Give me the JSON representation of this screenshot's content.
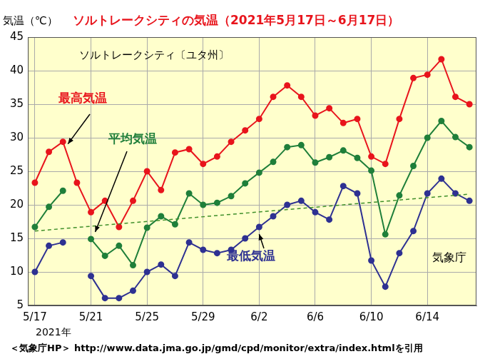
{
  "chart_data": {
    "type": "line",
    "title": "ソルトレークシティの気温（2021年5月17日～6月17日）",
    "subtitle": "ソルトレークシティ〔ユタ州〕",
    "y_label": "気温（℃）",
    "x_label": "2021年",
    "annotations": [
      "気象庁"
    ],
    "note": "＜気象庁HP＞ http://www.data.jma.go.jp/gmd/cpd/monitor/extra/index.htmlを引用",
    "categories": [
      "5/17",
      null,
      null,
      null,
      "5/21",
      null,
      null,
      null,
      "5/25",
      null,
      null,
      null,
      "5/29",
      null,
      null,
      null,
      "6/2",
      null,
      null,
      null,
      "6/6",
      null,
      null,
      null,
      "6/10",
      null,
      null,
      null,
      "6/14",
      null,
      null,
      null
    ],
    "series": [
      {
        "color": "#3f8f2a",
        "line_style": "dashed",
        "marker": "none",
        "values": [
          16.1,
          null,
          null,
          null,
          null,
          null,
          null,
          null,
          null,
          null,
          null,
          null,
          null,
          null,
          null,
          null,
          null,
          null,
          null,
          null,
          null,
          null,
          null,
          null,
          null,
          null,
          null,
          null,
          null,
          null,
          null,
          21.6
        ]
      },
      {
        "name": "最高気温",
        "color": "#e8141c",
        "line_style": "solid",
        "marker": "circle",
        "values": [
          23.3,
          27.9,
          29.4,
          23.3,
          18.9,
          20.6,
          16.7,
          20.6,
          25.0,
          22.2,
          27.8,
          28.3,
          26.1,
          27.2,
          29.4,
          31.1,
          32.8,
          36.1,
          37.8,
          36.1,
          33.3,
          34.4,
          32.2,
          32.8,
          27.2,
          26.1,
          32.8,
          38.9,
          39.4,
          41.7,
          36.1,
          35.0
        ]
      },
      {
        "name": "平均気温",
        "color": "#1f7f3a",
        "line_style": "solid",
        "marker": "circle",
        "values": [
          16.7,
          19.7,
          22.1,
          null,
          14.9,
          12.4,
          13.9,
          11.0,
          16.6,
          18.3,
          17.1,
          21.7,
          20.0,
          20.3,
          21.3,
          23.2,
          24.8,
          26.4,
          28.6,
          28.9,
          26.3,
          27.1,
          28.1,
          27.0,
          25.1,
          15.6,
          21.4,
          25.8,
          30.0,
          32.5,
          30.1,
          28.6
        ]
      },
      {
        "name": "最低気温",
        "color": "#2e3192",
        "line_style": "solid",
        "marker": "circle",
        "values": [
          10.0,
          13.9,
          14.4,
          null,
          9.4,
          6.1,
          6.1,
          7.2,
          10.0,
          11.1,
          9.4,
          14.4,
          13.3,
          12.8,
          13.3,
          15.0,
          16.7,
          18.3,
          20.0,
          20.6,
          18.9,
          17.8,
          22.8,
          21.7,
          11.7,
          7.8,
          12.8,
          16.1,
          21.7,
          23.9,
          21.7,
          20.6
        ]
      }
    ],
    "ylim": [
      5,
      45
    ],
    "yticks": [
      5,
      10,
      15,
      20,
      25,
      30,
      35,
      40,
      45
    ],
    "grid": true
  }
}
